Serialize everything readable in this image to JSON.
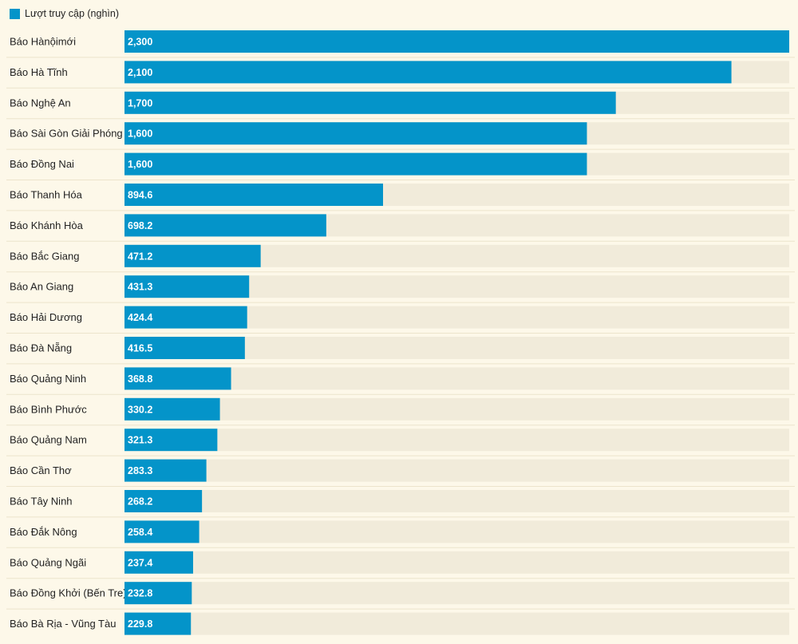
{
  "legend": {
    "label": "Lượt truy cập (nghìn)"
  },
  "colors": {
    "bar": "#0494c9",
    "track": "#f1ebda",
    "divider": "#ece4cc",
    "background": "#fdf8e9"
  },
  "chart_data": {
    "type": "bar",
    "orientation": "horizontal",
    "title": "",
    "xlabel": "",
    "ylabel": "",
    "xlim": [
      0,
      2300
    ],
    "legend": [
      "Lượt truy cập (nghìn)"
    ],
    "categories": [
      "Báo Hànộimới",
      "Báo Hà Tĩnh",
      "Báo Nghệ An",
      "Báo Sài Gòn Giải Phóng",
      "Báo Đồng Nai",
      "Báo Thanh Hóa",
      "Báo Khánh Hòa",
      "Báo Bắc Giang",
      "Báo An Giang",
      "Báo Hải Dương",
      "Báo Đà Nẵng",
      "Báo Quảng Ninh",
      "Báo Bình Phước",
      "Báo Quảng Nam",
      "Báo Cần Thơ",
      "Báo Tây Ninh",
      "Báo Đắk Nông",
      "Báo Quảng Ngãi",
      "Báo Đồng Khởi (Bến Tre)",
      "Báo Bà Rịa - Vũng Tàu"
    ],
    "values": [
      2300,
      2100,
      1700,
      1600,
      1600,
      894.6,
      698.2,
      471.2,
      431.3,
      424.4,
      416.5,
      368.8,
      330.2,
      321.3,
      283.3,
      268.2,
      258.4,
      237.4,
      232.8,
      229.8
    ],
    "value_labels": [
      "2,300",
      "2,100",
      "1,700",
      "1,600",
      "1,600",
      "894.6",
      "698.2",
      "471.2",
      "431.3",
      "424.4",
      "416.5",
      "368.8",
      "330.2",
      "321.3",
      "283.3",
      "268.2",
      "258.4",
      "237.4",
      "232.8",
      "229.8"
    ]
  }
}
